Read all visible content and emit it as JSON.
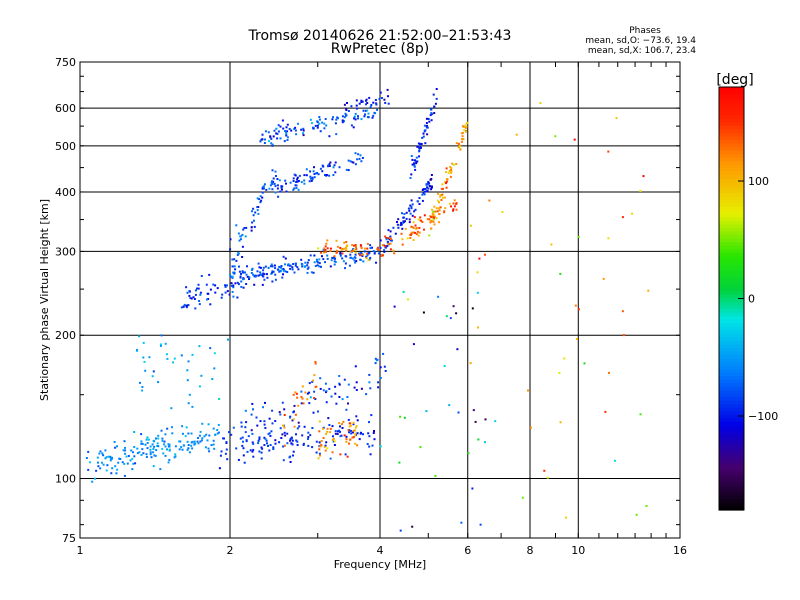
{
  "chart_data": {
    "type": "scatter",
    "title": "Tromsø 20140626 21:52:00–21:53:43",
    "subtitle": "RwPretec (8p)",
    "xlabel": "Frequency [MHz]",
    "ylabel": "Stationary phase Virtual Height [km]",
    "x_scale": "log",
    "y_scale": "log",
    "xlim": [
      1,
      16
    ],
    "ylim": [
      75,
      750
    ],
    "x_ticks": [
      1,
      2,
      4,
      6,
      8,
      10,
      16
    ],
    "y_ticks": [
      75,
      100,
      200,
      300,
      400,
      500,
      600,
      750
    ],
    "x_grid": [
      2,
      4,
      6,
      8,
      10
    ],
    "y_grid": [
      100,
      200,
      300,
      400,
      500,
      600
    ],
    "grid": true,
    "stats": {
      "title": "Phases",
      "line_o": "mean, sd,O: −73.6, 19.4",
      "line_x": "mean, sd,X: 106.7, 23.4"
    },
    "colorbar": {
      "label": "[deg]",
      "range": [
        -180,
        180
      ],
      "ticks": [
        100,
        0,
        -100
      ],
      "tick_labels": [
        "100",
        "0",
        "−100"
      ]
    },
    "traces": [
      {
        "x_start": 1.02,
        "x_end": 1.9,
        "height_start": 107,
        "height_end": 122,
        "height_spread": 10,
        "phase": -55,
        "phase_spread": 12,
        "count": 180
      },
      {
        "x_start": 1.9,
        "x_end": 3.9,
        "height_start": 118,
        "height_end": 125,
        "height_spread": 12,
        "phase": -95,
        "phase_spread": 12,
        "count": 160
      },
      {
        "x_start": 3.0,
        "x_end": 3.6,
        "height_start": 120,
        "height_end": 125,
        "height_spread": 10,
        "phase": 120,
        "phase_spread": 25,
        "count": 50
      },
      {
        "x_start": 1.6,
        "x_end": 2.6,
        "height_start": 235,
        "height_end": 280,
        "height_spread": 18,
        "phase": -90,
        "phase_spread": 15,
        "count": 90
      },
      {
        "x_start": 2.0,
        "x_end": 4.0,
        "height_start": 265,
        "height_end": 300,
        "height_spread": 12,
        "phase": -80,
        "phase_spread": 15,
        "count": 170
      },
      {
        "x_start": 3.0,
        "x_end": 4.0,
        "height_start": 305,
        "height_end": 300,
        "height_spread": 15,
        "phase": 120,
        "phase_spread": 25,
        "count": 55
      },
      {
        "x_start": 4.0,
        "x_end": 5.1,
        "height_start": 300,
        "height_end": 420,
        "height_spread": 18,
        "phase": -100,
        "phase_spread": 15,
        "count": 90
      },
      {
        "x_start": 4.0,
        "x_end": 5.7,
        "height_start": 300,
        "height_end": 380,
        "height_spread": 18,
        "phase": 130,
        "phase_spread": 25,
        "count": 70
      },
      {
        "x_start": 5.0,
        "x_end": 6.0,
        "height_start": 330,
        "height_end": 560,
        "height_spread": 25,
        "phase": 110,
        "phase_spread": 25,
        "count": 80
      },
      {
        "x_start": 4.6,
        "x_end": 5.2,
        "height_start": 430,
        "height_end": 640,
        "height_spread": 30,
        "phase": -100,
        "phase_spread": 15,
        "count": 60
      },
      {
        "x_start": 2.0,
        "x_end": 2.5,
        "height_start": 280,
        "height_end": 450,
        "height_spread": 30,
        "phase": -80,
        "phase_spread": 20,
        "count": 60
      },
      {
        "x_start": 2.3,
        "x_end": 3.7,
        "height_start": 400,
        "height_end": 470,
        "height_spread": 20,
        "phase": -85,
        "phase_spread": 15,
        "count": 90
      },
      {
        "x_start": 2.3,
        "x_end": 4.0,
        "height_start": 520,
        "height_end": 590,
        "height_spread": 25,
        "phase": -80,
        "phase_spread": 20,
        "count": 110
      },
      {
        "x_start": 3.4,
        "x_end": 4.2,
        "height_start": 600,
        "height_end": 640,
        "height_spread": 20,
        "phase": -100,
        "phase_spread": 15,
        "count": 30
      },
      {
        "x_start": 2.1,
        "x_end": 4.3,
        "height_start": 130,
        "height_end": 170,
        "height_spread": 15,
        "phase": -95,
        "phase_spread": 20,
        "count": 80
      },
      {
        "x_start": 2.5,
        "x_end": 3.0,
        "height_start": 125,
        "height_end": 165,
        "height_spread": 15,
        "phase": 120,
        "phase_spread": 20,
        "count": 25
      }
    ],
    "scattered": [
      {
        "x_start": 6.0,
        "x_end": 14.0,
        "height_start": 80,
        "height_end": 650,
        "phase": 100,
        "phase_spread": 40,
        "count": 45
      },
      {
        "x_start": 4.0,
        "x_end": 7.0,
        "height_start": 75,
        "height_end": 250,
        "phase": -60,
        "phase_spread": 60,
        "count": 35
      },
      {
        "x_start": 1.3,
        "x_end": 2.0,
        "height_start": 140,
        "height_end": 200,
        "phase": -50,
        "phase_spread": 15,
        "count": 40
      }
    ]
  }
}
